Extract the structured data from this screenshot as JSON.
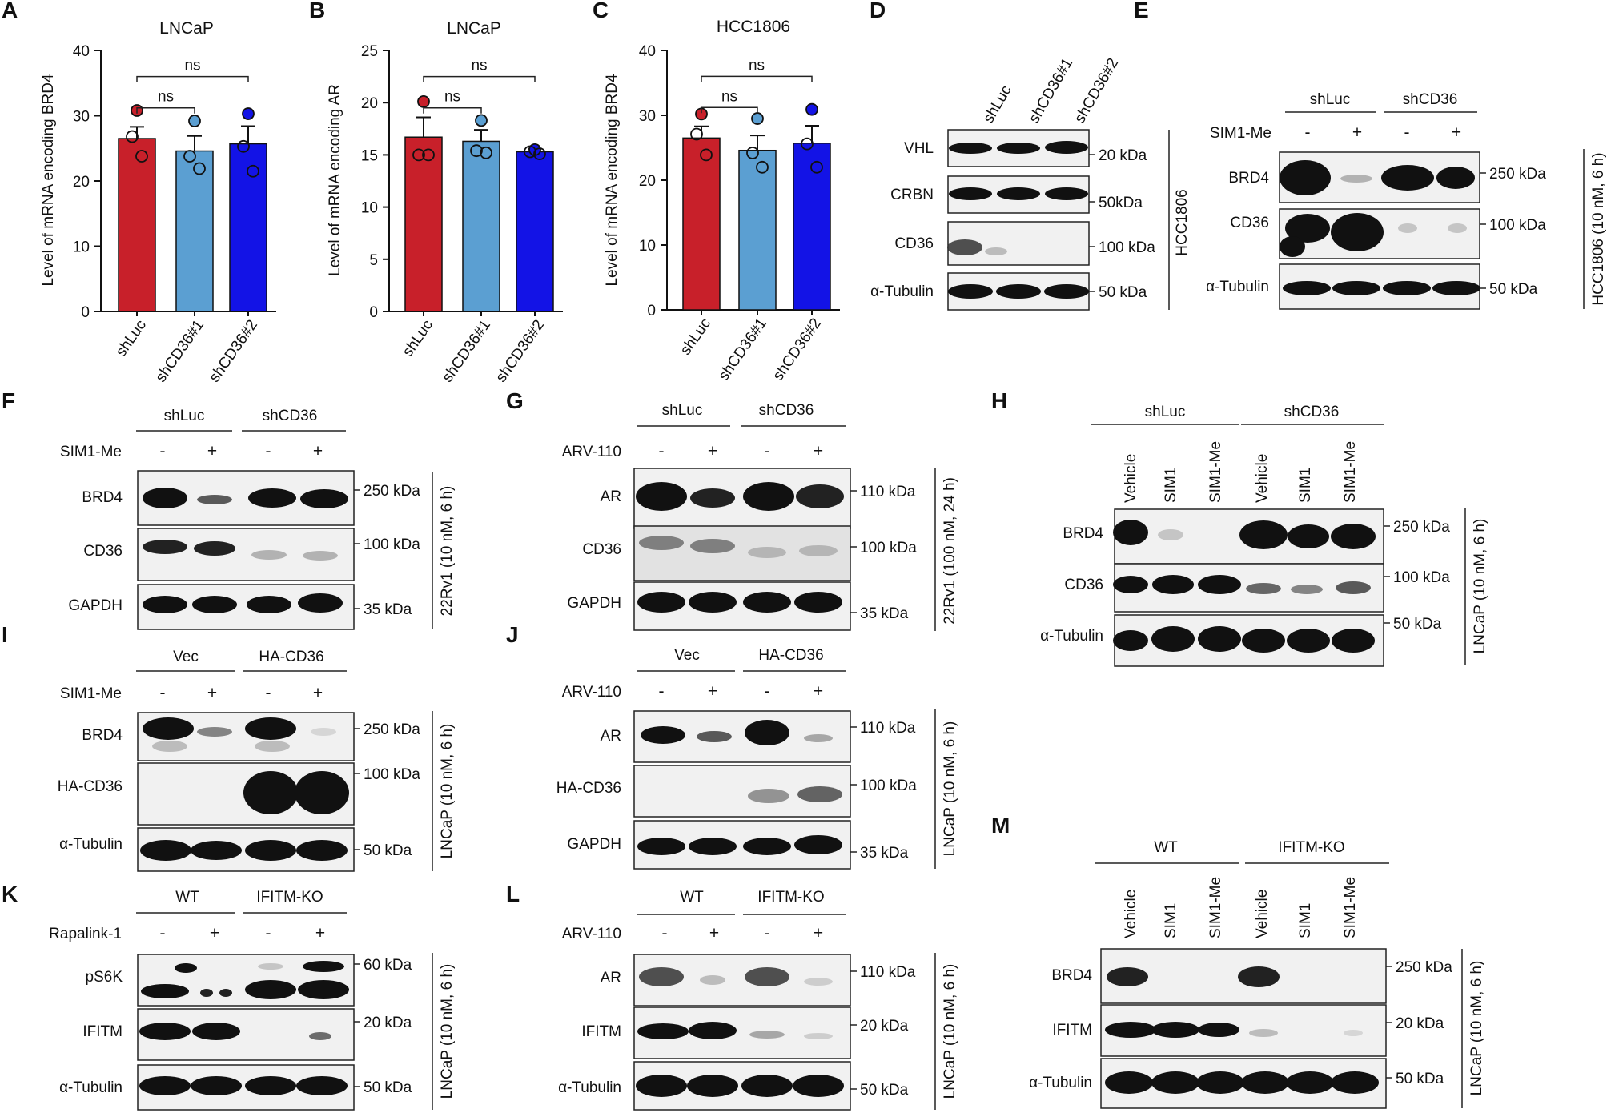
{
  "colors": {
    "red": "#c8202a",
    "light_blue": "#5b9fd2",
    "blue": "#1313e6",
    "band": "#111111"
  },
  "panels": {
    "A": "A",
    "B": "B",
    "C": "C",
    "D": "D",
    "E": "E",
    "F": "F",
    "G": "G",
    "H": "H",
    "I": "I",
    "J": "J",
    "K": "K",
    "L": "L",
    "M": "M"
  },
  "common": {
    "shLuc": "shLuc",
    "shCD36": "shCD36",
    "shCD36_1": "shCD36#1",
    "shCD36_2": "shCD36#2",
    "vec": "Vec",
    "ha_cd36": "HA-CD36",
    "wt": "WT",
    "ifitm_ko": "IFITM-KO",
    "minus": "-",
    "plus": "+",
    "vehicle": "Vehicle",
    "sim1": "SIM1",
    "sim1_me": "SIM1-Me",
    "arv110": "ARV-110",
    "rapalink": "Rapalink-1",
    "ns": "ns"
  },
  "proteins": {
    "vhl": "VHL",
    "crbn": "CRBN",
    "cd36": "CD36",
    "tubulin": "α-Tubulin",
    "brd4": "BRD4",
    "gapdh": "GAPDH",
    "ar": "AR",
    "ha_cd36": "HA-CD36",
    "ps6k": "pS6K",
    "ifitm": "IFITM"
  },
  "kda": {
    "k20": "20 kDa",
    "k20b": "20 kDa",
    "k50": "50 kDa",
    "k50n": "50kDa",
    "k100": "100 kDa",
    "k250": "250 kDa",
    "k35": "35 kDa",
    "k110": "110 kDa",
    "k60": "60 kDa"
  },
  "conditions": {
    "hcc": "HCC1806",
    "hcc6": "HCC1806 (10 nM, 6 h)",
    "rv6": "22Rv1 (10 nM, 6 h)",
    "rv24": "22Rv1 (100 nM, 24 h)",
    "ln6": "LNCaP (10 nM, 6 h)"
  },
  "chart_data": [
    {
      "type": "bar",
      "title": "LNCaP",
      "ylabel": "Level of mRNA encoding BRD4",
      "categories": [
        "shLuc",
        "shCD36#1",
        "shCD36#2"
      ],
      "values": [
        26.5,
        24.6,
        25.7
      ],
      "errors": [
        1.8,
        2.3,
        2.7
      ],
      "points": [
        [
          30.8,
          26.8,
          23.8
        ],
        [
          29.2,
          23.8,
          21.9
        ],
        [
          30.3,
          25.3,
          21.5
        ]
      ],
      "ylim": [
        0,
        40
      ],
      "yticks": [
        0,
        10,
        20,
        30,
        40
      ],
      "brackets": [
        {
          "from": 0,
          "to": 1,
          "label": "ns"
        },
        {
          "from": 0,
          "to": 2,
          "label": "ns"
        }
      ]
    },
    {
      "type": "bar",
      "title": "LNCaP",
      "ylabel": "Level of mRNA encoding AR",
      "categories": [
        "shLuc",
        "shCD36#1",
        "shCD36#2"
      ],
      "values": [
        16.7,
        16.3,
        15.3
      ],
      "errors": [
        1.9,
        1.1,
        0.3
      ],
      "points": [
        [
          20.1,
          15.0,
          15.0
        ],
        [
          18.3,
          15.4,
          15.2
        ],
        [
          15.5,
          15.3,
          15.1
        ]
      ],
      "ylim": [
        0,
        25
      ],
      "yticks": [
        0,
        5,
        10,
        15,
        20,
        25
      ],
      "brackets": [
        {
          "from": 0,
          "to": 1,
          "label": "ns"
        },
        {
          "from": 0,
          "to": 2,
          "label": "ns"
        }
      ]
    },
    {
      "type": "bar",
      "title": "HCC1806",
      "ylabel": "Level of mRNA encoding BRD4",
      "categories": [
        "shLuc",
        "shCD36#1",
        "shCD36#2"
      ],
      "values": [
        26.5,
        24.6,
        25.7
      ],
      "errors": [
        1.8,
        2.3,
        2.7
      ],
      "points": [
        [
          30.2,
          27.1,
          23.9
        ],
        [
          29.5,
          24.2,
          22.0
        ],
        [
          30.9,
          25.6,
          22.0
        ]
      ],
      "ylim": [
        0,
        40
      ],
      "yticks": [
        0,
        10,
        20,
        30,
        40
      ],
      "brackets": [
        {
          "from": 0,
          "to": 1,
          "label": "ns"
        },
        {
          "from": 0,
          "to": 2,
          "label": "ns"
        }
      ]
    }
  ]
}
